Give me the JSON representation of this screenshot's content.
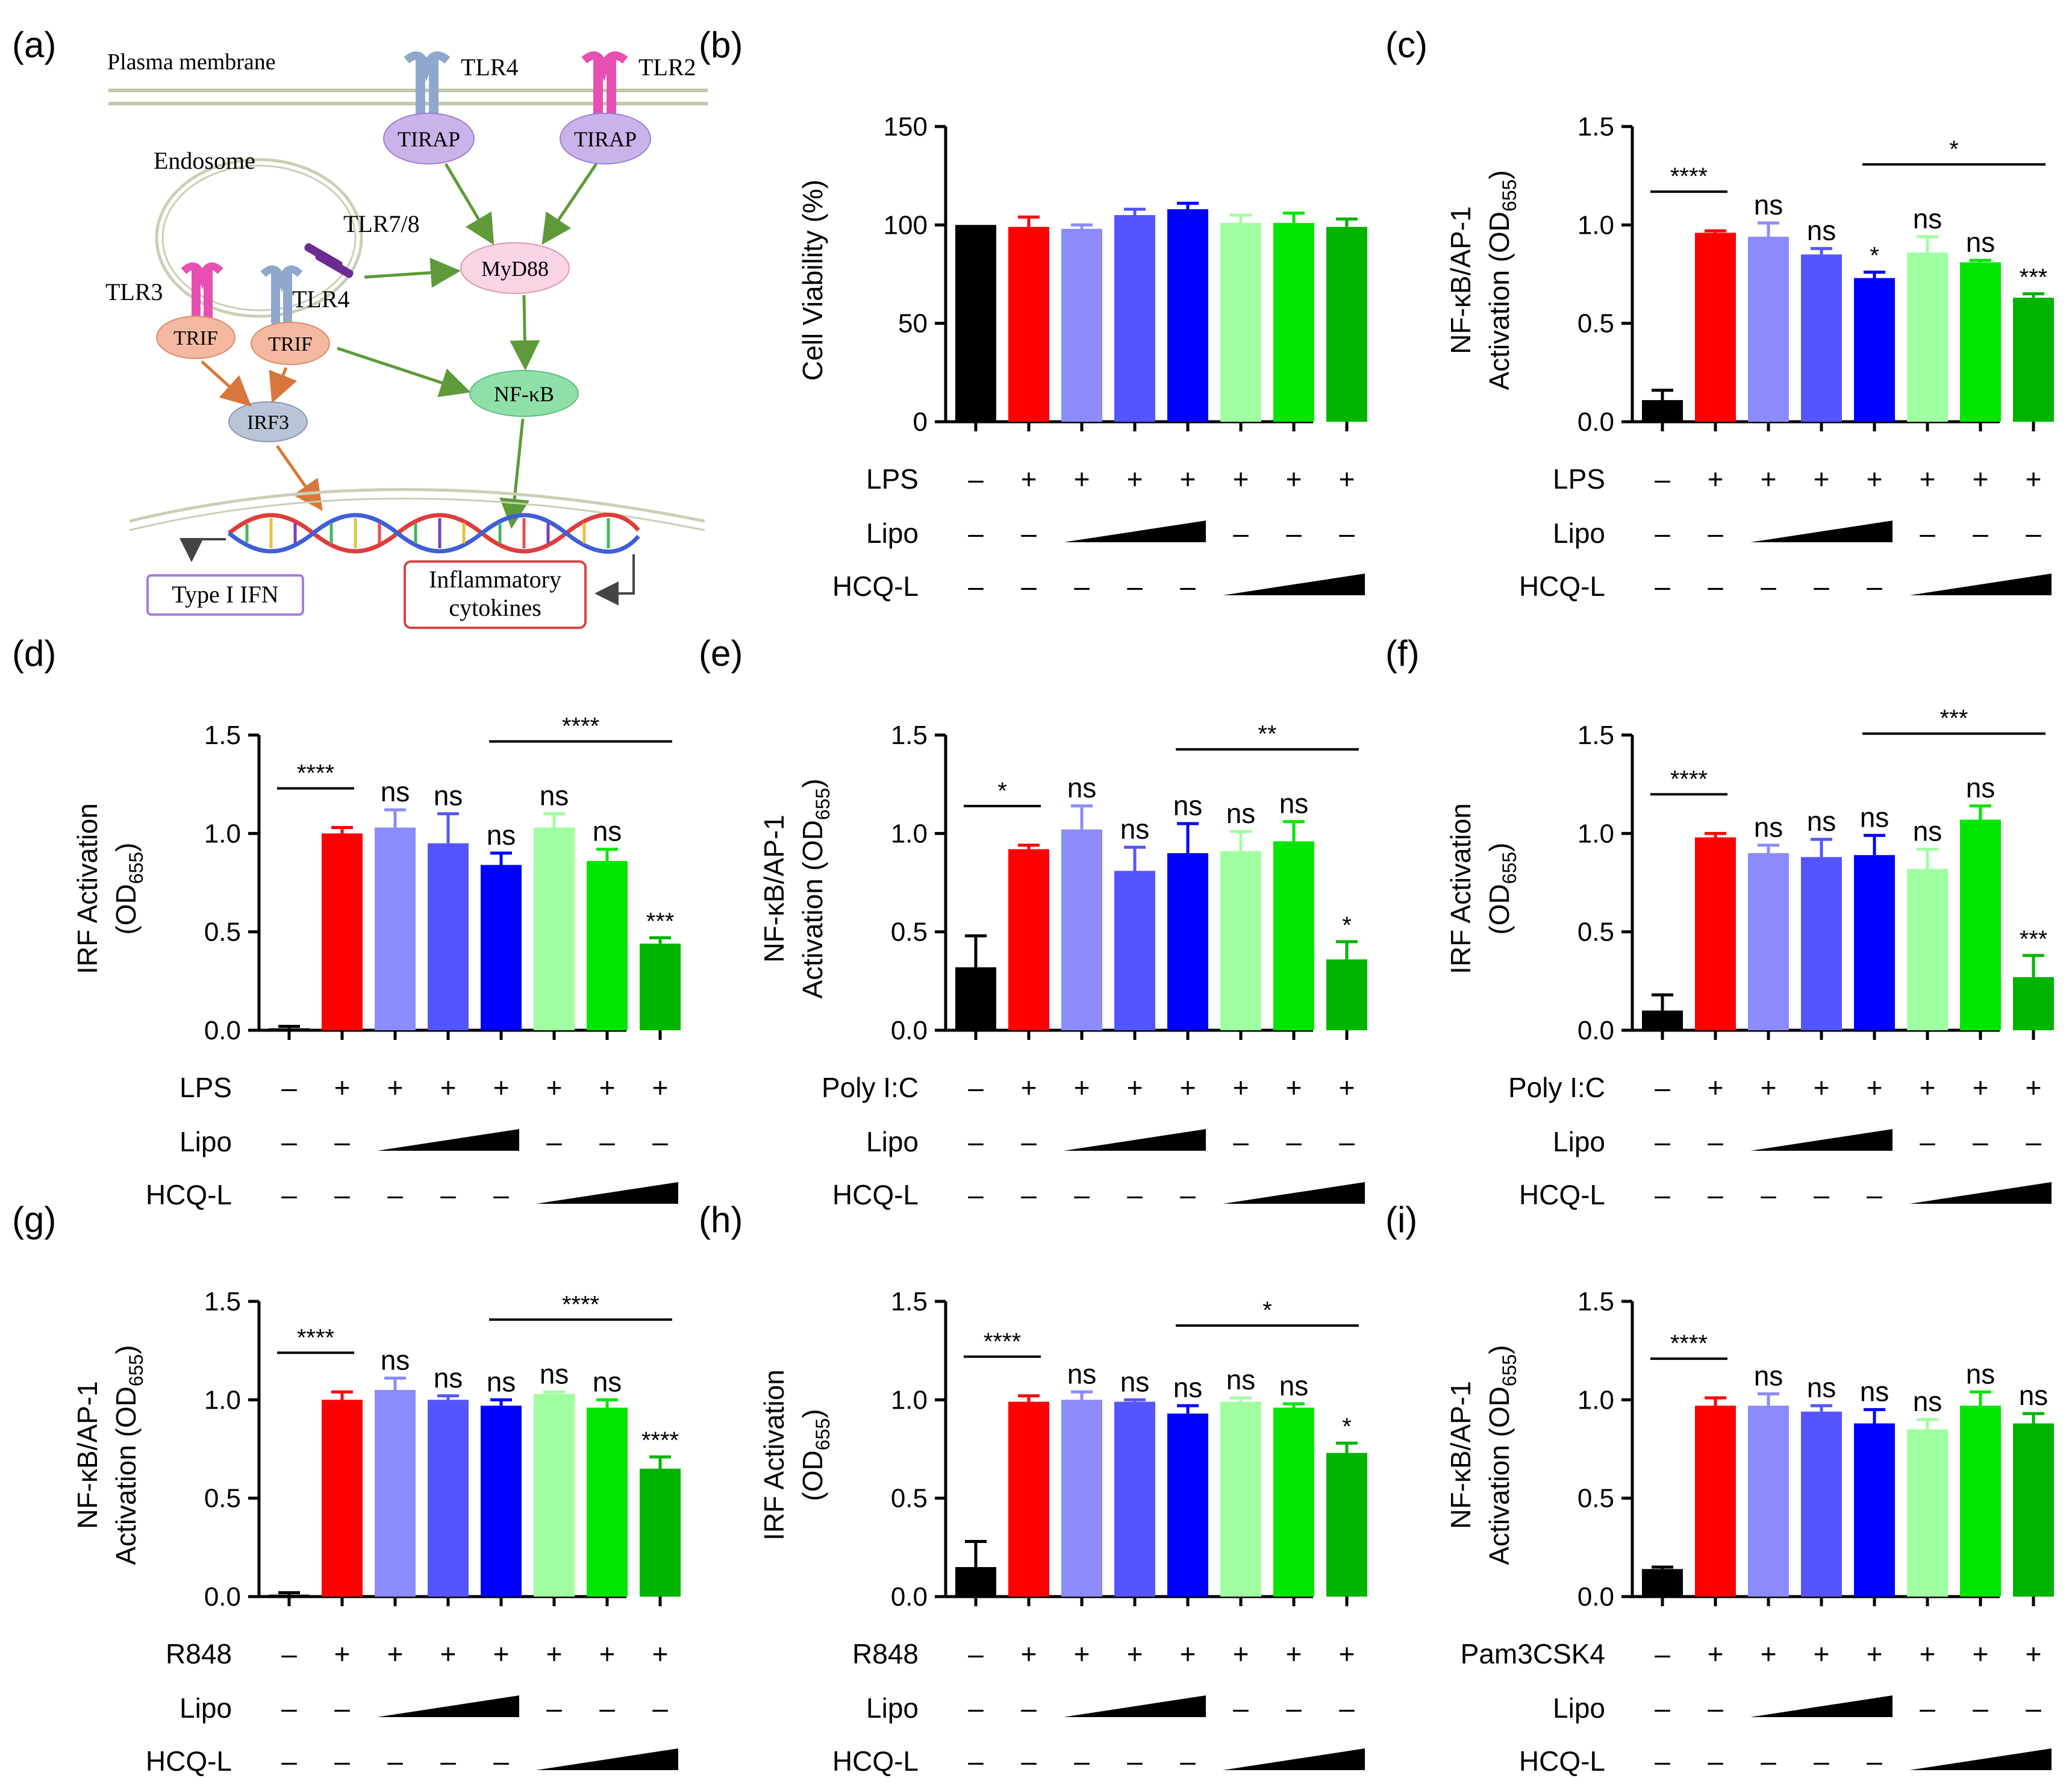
{
  "colors": {
    "black": "#000000",
    "red": "#FF0000",
    "lipo_low": "#8B8BFF",
    "lipo_mid": "#5555FF",
    "lipo_high": "#0000FF",
    "hcq_low": "#A0FFA0",
    "hcq_mid": "#00E600",
    "hcq_high": "#00B400",
    "tlr_blue": "#8FA7CC",
    "tlr_magenta": "#E84FB3",
    "tlr_purple": "#6B2C91",
    "tirap_fill": "#C9B3EA",
    "myd88_fill": "#F9D4E4",
    "trif_fill": "#F4B8A0",
    "irf3_fill": "#B9C4D6",
    "nfkb_fill": "#8FE0A8",
    "green_arrow": "#5E9A3A",
    "orange_arrow": "#D9773A",
    "ifn_box": "#A77BE0",
    "cytokine_box": "#D64545"
  },
  "diagram": {
    "panel_label": "(a)",
    "plasma_membrane_label": "Plasma membrane",
    "endosome_label": "Endosome",
    "tlr4_top": "TLR4",
    "tlr2": "TLR2",
    "tirap_1": "TIRAP",
    "tirap_2": "TIRAP",
    "tlr78": "TLR7/8",
    "tlr3": "TLR3",
    "tlr4_endo": "TLR4",
    "trif_1": "TRIF",
    "trif_2": "TRIF",
    "myd88": "MyD88",
    "nfkb": "NF-κB",
    "irf3": "IRF3",
    "type1_ifn": "Type I IFN",
    "inflammatory_line1": "Inflammatory",
    "inflammatory_line2": "cytokines",
    "icons": [
      "tlr4-receptor-icon",
      "tlr2-receptor-icon",
      "tlr78-receptor-icon",
      "tlr3-receptor-icon",
      "dna-helix-icon"
    ]
  },
  "chart_data": [
    {
      "panel": "(b)",
      "type": "bar",
      "ylabel": "Cell Viability (%)",
      "ylim": [
        0,
        150
      ],
      "yticks": [
        "0",
        "50",
        "100",
        "150"
      ],
      "values": [
        100,
        99,
        98,
        105,
        108,
        101,
        101,
        99
      ],
      "errors": [
        0,
        5,
        2,
        3,
        3,
        4,
        5,
        4
      ],
      "sig": [
        "",
        "",
        "",
        "",
        "",
        "",
        "",
        ""
      ],
      "bracket": null,
      "treatment": "LPS",
      "treatment_row": [
        "–",
        "+",
        "+",
        "+",
        "+",
        "+",
        "+",
        "+"
      ],
      "lipo_label": "Lipo",
      "lipo_row": [
        "–",
        "–",
        "",
        "",
        "",
        "–",
        "–",
        "–"
      ],
      "hcq_label": "HCQ-L",
      "hcq_row": [
        "–",
        "–",
        "–",
        "–",
        "–",
        "",
        "",
        ""
      ]
    },
    {
      "panel": "(c)",
      "type": "bar",
      "ylabel": "NF-κB/AP-1|Activation (OD655)",
      "ylim": [
        0,
        1.5
      ],
      "yticks": [
        "0.0",
        "0.5",
        "1.0",
        "1.5"
      ],
      "values": [
        0.11,
        0.96,
        0.94,
        0.85,
        0.73,
        0.86,
        0.81,
        0.63
      ],
      "errors": [
        0.05,
        0.01,
        0.07,
        0.03,
        0.03,
        0.08,
        0.01,
        0.02
      ],
      "sig": [
        "",
        "",
        "ns",
        "ns",
        "*",
        "ns",
        "ns",
        "***"
      ],
      "bracket": {
        "from": 0,
        "to": 1,
        "label": "****"
      },
      "bracket2": {
        "from": 4,
        "to": 7,
        "label": "*"
      },
      "treatment": "LPS",
      "treatment_row": [
        "–",
        "+",
        "+",
        "+",
        "+",
        "+",
        "+",
        "+"
      ],
      "lipo_label": "Lipo",
      "lipo_row": [
        "–",
        "–",
        "",
        "",
        "",
        "–",
        "–",
        "–"
      ],
      "hcq_label": "HCQ-L",
      "hcq_row": [
        "–",
        "–",
        "–",
        "–",
        "–",
        "",
        "",
        ""
      ]
    },
    {
      "panel": "(d)",
      "type": "bar",
      "ylabel": "IRF Activation|(OD655)",
      "ylim": [
        0,
        1.5
      ],
      "yticks": [
        "0.0",
        "0.5",
        "1.0",
        "1.5"
      ],
      "values": [
        0.01,
        1.0,
        1.03,
        0.95,
        0.84,
        1.03,
        0.86,
        0.44
      ],
      "errors": [
        0.01,
        0.03,
        0.09,
        0.15,
        0.06,
        0.07,
        0.06,
        0.03
      ],
      "sig": [
        "",
        "",
        "ns",
        "ns",
        "ns",
        "ns",
        "ns",
        "***"
      ],
      "bracket": {
        "from": 0,
        "to": 1,
        "label": "****"
      },
      "bracket2": {
        "from": 4,
        "to": 7,
        "label": "****"
      },
      "treatment": "LPS",
      "treatment_row": [
        "–",
        "+",
        "+",
        "+",
        "+",
        "+",
        "+",
        "+"
      ],
      "lipo_label": "Lipo",
      "lipo_row": [
        "–",
        "–",
        "",
        "",
        "",
        "–",
        "–",
        "–"
      ],
      "hcq_label": "HCQ-L",
      "hcq_row": [
        "–",
        "–",
        "–",
        "–",
        "–",
        "",
        "",
        ""
      ]
    },
    {
      "panel": "(e)",
      "type": "bar",
      "ylabel": "NF-κB/AP-1|Activation (OD655)",
      "ylim": [
        0,
        1.5
      ],
      "yticks": [
        "0.0",
        "0.5",
        "1.0",
        "1.5"
      ],
      "values": [
        0.32,
        0.92,
        1.02,
        0.81,
        0.9,
        0.91,
        0.96,
        0.36
      ],
      "errors": [
        0.16,
        0.02,
        0.12,
        0.12,
        0.15,
        0.1,
        0.1,
        0.09
      ],
      "sig": [
        "",
        "",
        "ns",
        "ns",
        "ns",
        "ns",
        "ns",
        "*"
      ],
      "bracket": {
        "from": 0,
        "to": 1,
        "label": "*"
      },
      "bracket2": {
        "from": 4,
        "to": 7,
        "label": "**"
      },
      "treatment": "Poly I:C",
      "treatment_row": [
        "–",
        "+",
        "+",
        "+",
        "+",
        "+",
        "+",
        "+"
      ],
      "lipo_label": "Lipo",
      "lipo_row": [
        "–",
        "–",
        "",
        "",
        "",
        "–",
        "–",
        "–"
      ],
      "hcq_label": "HCQ-L",
      "hcq_row": [
        "–",
        "–",
        "–",
        "–",
        "–",
        "",
        "",
        ""
      ]
    },
    {
      "panel": "(f)",
      "type": "bar",
      "ylabel": "IRF Activation|(OD655)",
      "ylim": [
        0,
        1.5
      ],
      "yticks": [
        "0.0",
        "0.5",
        "1.0",
        "1.5"
      ],
      "values": [
        0.1,
        0.98,
        0.9,
        0.88,
        0.89,
        0.82,
        1.07,
        0.27
      ],
      "errors": [
        0.08,
        0.02,
        0.04,
        0.09,
        0.1,
        0.1,
        0.07,
        0.11
      ],
      "sig": [
        "",
        "",
        "ns",
        "ns",
        "ns",
        "ns",
        "ns",
        "***"
      ],
      "bracket": {
        "from": 0,
        "to": 1,
        "label": "****"
      },
      "bracket2": {
        "from": 4,
        "to": 7,
        "label": "***"
      },
      "treatment": "Poly I:C",
      "treatment_row": [
        "–",
        "+",
        "+",
        "+",
        "+",
        "+",
        "+",
        "+"
      ],
      "lipo_label": "Lipo",
      "lipo_row": [
        "–",
        "–",
        "",
        "",
        "",
        "–",
        "–",
        "–"
      ],
      "hcq_label": "HCQ-L",
      "hcq_row": [
        "–",
        "–",
        "–",
        "–",
        "–",
        "",
        "",
        ""
      ]
    },
    {
      "panel": "(g)",
      "type": "bar",
      "ylabel": "NF-κB/AP-1|Activation (OD655)",
      "ylim": [
        0,
        1.5
      ],
      "yticks": [
        "0.0",
        "0.5",
        "1.0",
        "1.5"
      ],
      "values": [
        0.01,
        1.0,
        1.05,
        1.0,
        0.97,
        1.03,
        0.96,
        0.65
      ],
      "errors": [
        0.01,
        0.04,
        0.06,
        0.02,
        0.03,
        0.01,
        0.04,
        0.06
      ],
      "sig": [
        "",
        "",
        "ns",
        "ns",
        "ns",
        "ns",
        "ns",
        "****"
      ],
      "bracket": {
        "from": 0,
        "to": 1,
        "label": "****"
      },
      "bracket2": {
        "from": 4,
        "to": 7,
        "label": "****"
      },
      "treatment": "R848",
      "treatment_row": [
        "–",
        "+",
        "+",
        "+",
        "+",
        "+",
        "+",
        "+"
      ],
      "lipo_label": "Lipo",
      "lipo_row": [
        "–",
        "–",
        "",
        "",
        "",
        "–",
        "–",
        "–"
      ],
      "hcq_label": "HCQ-L",
      "hcq_row": [
        "–",
        "–",
        "–",
        "–",
        "–",
        "",
        "",
        ""
      ]
    },
    {
      "panel": "(h)",
      "type": "bar",
      "ylabel": "IRF Activation|(OD655)",
      "ylim": [
        0,
        1.5
      ],
      "yticks": [
        "0.0",
        "0.5",
        "1.0",
        "1.5"
      ],
      "values": [
        0.15,
        0.99,
        1.0,
        0.99,
        0.93,
        0.99,
        0.96,
        0.73
      ],
      "errors": [
        0.13,
        0.03,
        0.04,
        0.01,
        0.04,
        0.02,
        0.02,
        0.05
      ],
      "sig": [
        "",
        "",
        "ns",
        "ns",
        "ns",
        "ns",
        "ns",
        "*"
      ],
      "bracket": {
        "from": 0,
        "to": 1,
        "label": "****"
      },
      "bracket2": {
        "from": 4,
        "to": 7,
        "label": "*"
      },
      "treatment": "R848",
      "treatment_row": [
        "–",
        "+",
        "+",
        "+",
        "+",
        "+",
        "+",
        "+"
      ],
      "lipo_label": "Lipo",
      "lipo_row": [
        "–",
        "–",
        "",
        "",
        "",
        "–",
        "–",
        "–"
      ],
      "hcq_label": "HCQ-L",
      "hcq_row": [
        "–",
        "–",
        "–",
        "–",
        "–",
        "",
        "",
        ""
      ]
    },
    {
      "panel": "(i)",
      "type": "bar",
      "ylabel": "NF-κB/AP-1|Activation (OD655)",
      "ylim": [
        0,
        1.5
      ],
      "yticks": [
        "0.0",
        "0.5",
        "1.0",
        "1.5"
      ],
      "values": [
        0.14,
        0.97,
        0.97,
        0.94,
        0.88,
        0.85,
        0.97,
        0.88
      ],
      "errors": [
        0.01,
        0.04,
        0.06,
        0.03,
        0.07,
        0.05,
        0.07,
        0.05
      ],
      "sig": [
        "",
        "",
        "ns",
        "ns",
        "ns",
        "ns",
        "ns",
        "ns"
      ],
      "bracket": {
        "from": 0,
        "to": 1,
        "label": "****"
      },
      "bracket2": null,
      "treatment": "Pam3CSK4",
      "treatment_row": [
        "–",
        "+",
        "+",
        "+",
        "+",
        "+",
        "+",
        "+"
      ],
      "lipo_label": "Lipo",
      "lipo_row": [
        "–",
        "–",
        "",
        "",
        "",
        "–",
        "–",
        "–"
      ],
      "hcq_label": "HCQ-L",
      "hcq_row": [
        "–",
        "–",
        "–",
        "–",
        "–",
        "",
        "",
        ""
      ]
    }
  ]
}
